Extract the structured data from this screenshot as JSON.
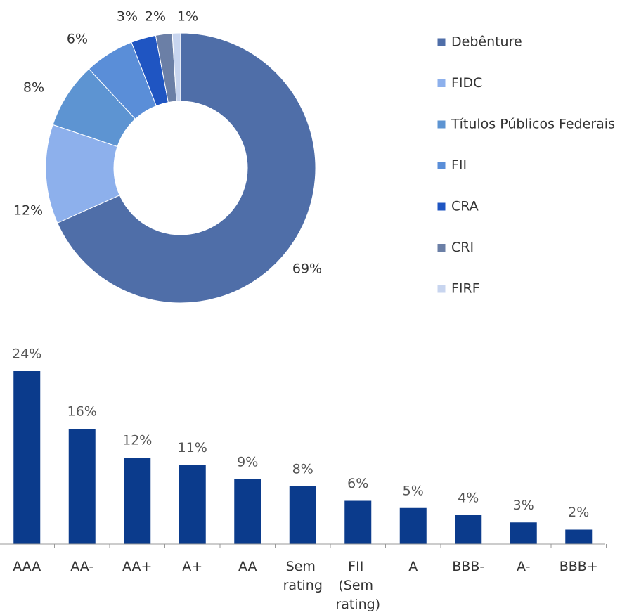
{
  "chart_data": [
    {
      "type": "donut",
      "categories": [
        "Debênture",
        "FIDC",
        "Títulos Públicos Federais",
        "FII",
        "CRA",
        "CRI",
        "FIRF"
      ],
      "values": [
        69,
        12,
        8,
        6,
        3,
        2,
        1
      ],
      "value_labels": [
        "69%",
        "12%",
        "8%",
        "6%",
        "3%",
        "2%",
        "1%"
      ],
      "colors": [
        "#4f6ea8",
        "#8db0ec",
        "#5d94d2",
        "#5a8ed8",
        "#1f55c2",
        "#6b7fa6",
        "#c8d5ef"
      ],
      "legend": "right"
    },
    {
      "type": "bar",
      "categories": [
        "AAA",
        "AA-",
        "AA+",
        "A+",
        "AA",
        "Sem rating",
        "FII (Sem rating)",
        "A",
        "BBB-",
        "A-",
        "BBB+"
      ],
      "values": [
        24,
        16,
        12,
        11,
        9,
        8,
        6,
        5,
        4,
        3,
        2
      ],
      "value_labels": [
        "24%",
        "16%",
        "12%",
        "11%",
        "9%",
        "8%",
        "6%",
        "5%",
        "4%",
        "3%",
        "2%"
      ],
      "color": "#0b3b8c",
      "ylim": [
        0,
        24
      ]
    }
  ]
}
